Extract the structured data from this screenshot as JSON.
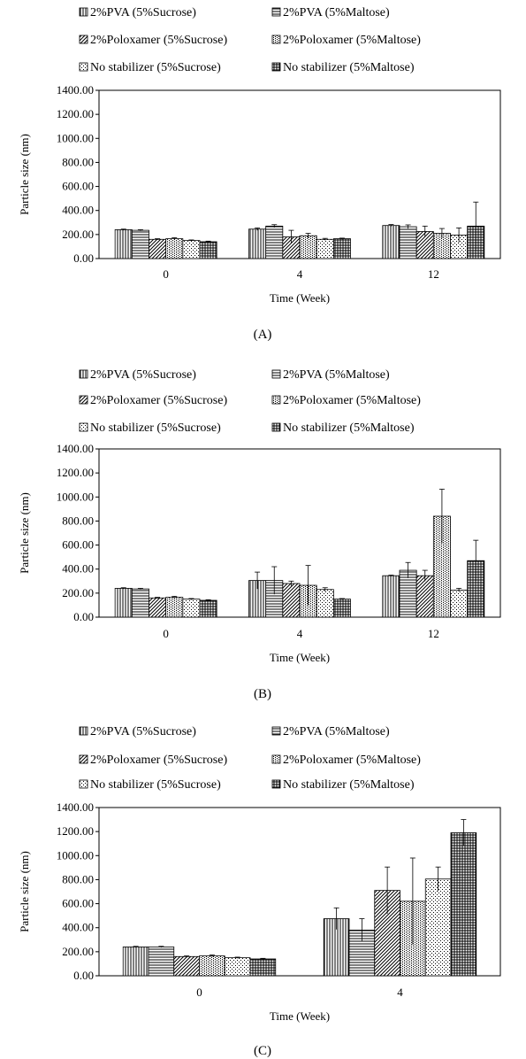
{
  "legend_patterns": [
    "vert",
    "horiz",
    "diag",
    "dots",
    "sparse",
    "grid"
  ],
  "chart_data": [
    {
      "type": "bar",
      "label": "(A)",
      "xlabel": "Time  (Week)",
      "ylabel": "Particle  size  (nm)",
      "ylim": [
        0,
        1400
      ],
      "yticks": [
        "0.00",
        "200.00",
        "400.00",
        "600.00",
        "800.00",
        "1000.00",
        "1200.00",
        "1400.00"
      ],
      "categories": [
        "0",
        "4",
        "12"
      ],
      "grid": false,
      "legend_position": "top",
      "series": [
        {
          "name": "2%PVA (5%Sucrose)",
          "values": [
            240,
            245,
            275
          ],
          "errors": [
            5,
            10,
            8
          ]
        },
        {
          "name": "2%PVA (5%Maltose)",
          "values": [
            235,
            270,
            265
          ],
          "errors": [
            5,
            12,
            15
          ]
        },
        {
          "name": "2%Poloxamer (5%Sucrose)",
          "values": [
            160,
            180,
            225
          ],
          "errors": [
            5,
            55,
            45
          ]
        },
        {
          "name": "2%Poloxamer (5%Maltose)",
          "values": [
            165,
            190,
            210
          ],
          "errors": [
            8,
            20,
            40
          ]
        },
        {
          "name": "No stabilizer (5%Sucrose)",
          "values": [
            150,
            160,
            195
          ],
          "errors": [
            5,
            8,
            60
          ]
        },
        {
          "name": "No stabilizer (5%Maltose)",
          "values": [
            140,
            165,
            270
          ],
          "errors": [
            5,
            5,
            200
          ]
        }
      ]
    },
    {
      "type": "bar",
      "label": "(B)",
      "xlabel": "Time  (Week)",
      "ylabel": "Particle  size  (nm)",
      "ylim": [
        0,
        1400
      ],
      "yticks": [
        "0.00",
        "200.00",
        "400.00",
        "600.00",
        "800.00",
        "1000.00",
        "1200.00",
        "1400.00"
      ],
      "categories": [
        "0",
        "4",
        "12"
      ],
      "grid": false,
      "legend_position": "top",
      "series": [
        {
          "name": "2%PVA (5%Sucrose)",
          "values": [
            240,
            305,
            345
          ],
          "errors": [
            5,
            70,
            5
          ]
        },
        {
          "name": "2%PVA (5%Maltose)",
          "values": [
            235,
            305,
            390
          ],
          "errors": [
            5,
            115,
            65
          ]
        },
        {
          "name": "2%Poloxamer (5%Sucrose)",
          "values": [
            160,
            280,
            345
          ],
          "errors": [
            5,
            20,
            45
          ]
        },
        {
          "name": "2%Poloxamer (5%Maltose)",
          "values": [
            165,
            265,
            840
          ],
          "errors": [
            8,
            165,
            225
          ]
        },
        {
          "name": "No stabilizer (5%Sucrose)",
          "values": [
            150,
            230,
            225
          ],
          "errors": [
            5,
            15,
            15
          ]
        },
        {
          "name": "No stabilizer (5%Maltose)",
          "values": [
            140,
            150,
            470
          ],
          "errors": [
            5,
            5,
            170
          ]
        }
      ]
    },
    {
      "type": "bar",
      "label": "(C)",
      "xlabel": "Time  (Week)",
      "ylabel": "Particle  size  (nm)",
      "ylim": [
        0,
        1400
      ],
      "yticks": [
        "0.00",
        "200.00",
        "400.00",
        "600.00",
        "800.00",
        "1000.00",
        "1200.00",
        "1400.00"
      ],
      "categories": [
        "0",
        "4"
      ],
      "grid": false,
      "legend_position": "top",
      "series": [
        {
          "name": "2%PVA (5%Sucrose)",
          "values": [
            240,
            475
          ],
          "errors": [
            5,
            90
          ]
        },
        {
          "name": "2%PVA (5%Maltose)",
          "values": [
            240,
            380
          ],
          "errors": [
            5,
            95
          ]
        },
        {
          "name": "2%Poloxamer (5%Sucrose)",
          "values": [
            160,
            710
          ],
          "errors": [
            5,
            195
          ]
        },
        {
          "name": "2%Poloxamer (5%Maltose)",
          "values": [
            165,
            620
          ],
          "errors": [
            8,
            360
          ]
        },
        {
          "name": "No stabilizer (5%Sucrose)",
          "values": [
            150,
            805
          ],
          "errors": [
            5,
            100
          ]
        },
        {
          "name": "No stabilizer (5%Maltose)",
          "values": [
            140,
            1190
          ],
          "errors": [
            5,
            110
          ]
        }
      ]
    }
  ]
}
